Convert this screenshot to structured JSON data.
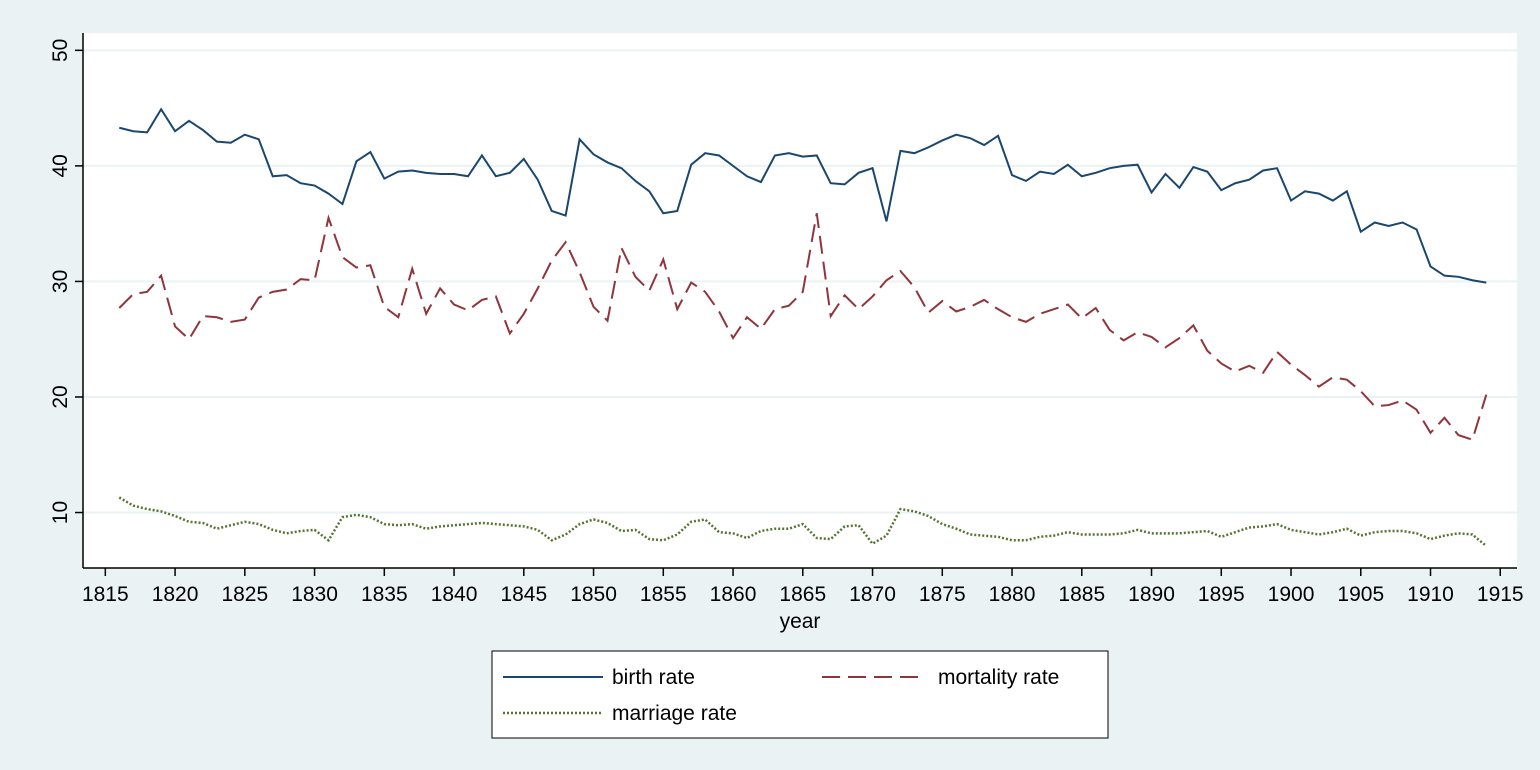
{
  "chart_data": {
    "type": "line",
    "x_label": "year",
    "x": [
      1816,
      1817,
      1818,
      1819,
      1820,
      1821,
      1822,
      1823,
      1824,
      1825,
      1826,
      1827,
      1828,
      1829,
      1830,
      1831,
      1832,
      1833,
      1834,
      1835,
      1836,
      1837,
      1838,
      1839,
      1840,
      1841,
      1842,
      1843,
      1844,
      1845,
      1846,
      1847,
      1848,
      1849,
      1850,
      1851,
      1852,
      1853,
      1854,
      1855,
      1856,
      1857,
      1858,
      1859,
      1860,
      1861,
      1862,
      1863,
      1864,
      1865,
      1866,
      1867,
      1868,
      1869,
      1870,
      1871,
      1872,
      1873,
      1874,
      1875,
      1876,
      1877,
      1878,
      1879,
      1880,
      1881,
      1882,
      1883,
      1884,
      1885,
      1886,
      1887,
      1888,
      1889,
      1890,
      1891,
      1892,
      1893,
      1894,
      1895,
      1896,
      1897,
      1898,
      1899,
      1900,
      1901,
      1902,
      1903,
      1904,
      1905,
      1906,
      1907,
      1908,
      1909,
      1910,
      1911,
      1912,
      1913,
      1914
    ],
    "series": [
      {
        "name": "birth rate",
        "color": "#1a476f",
        "dash": "solid",
        "values": [
          43.3,
          43.0,
          42.9,
          44.9,
          43.0,
          43.9,
          43.1,
          42.1,
          42.0,
          42.7,
          42.3,
          39.1,
          39.2,
          38.5,
          38.3,
          37.6,
          36.7,
          40.4,
          41.2,
          38.9,
          39.5,
          39.6,
          39.4,
          39.3,
          39.3,
          39.1,
          40.9,
          39.1,
          39.4,
          40.6,
          38.8,
          36.1,
          35.7,
          42.3,
          41.0,
          40.3,
          39.8,
          38.7,
          37.8,
          35.9,
          36.1,
          40.1,
          41.1,
          40.9,
          40.0,
          39.1,
          38.6,
          40.9,
          41.1,
          40.8,
          40.9,
          38.5,
          38.4,
          39.4,
          39.8,
          35.2,
          41.3,
          41.1,
          41.6,
          42.2,
          42.7,
          42.4,
          41.8,
          42.6,
          39.2,
          38.7,
          39.5,
          39.3,
          40.1,
          39.1,
          39.4,
          39.8,
          40.0,
          40.1,
          37.7,
          39.3,
          38.1,
          39.9,
          39.5,
          37.9,
          38.5,
          38.8,
          39.6,
          39.8,
          37.0,
          37.8,
          37.6,
          37.0,
          37.8,
          34.3,
          35.1,
          34.8,
          35.1,
          34.5,
          31.3,
          30.5,
          30.4,
          30.1,
          29.9
        ]
      },
      {
        "name": "mortality rate",
        "color": "#90353b",
        "dash": "dashed",
        "values": [
          27.7,
          28.9,
          29.1,
          30.5,
          26.1,
          25.0,
          27.0,
          26.9,
          26.5,
          26.7,
          28.6,
          29.1,
          29.3,
          30.2,
          30.1,
          35.5,
          32.1,
          31.2,
          31.4,
          27.8,
          26.9,
          31.1,
          27.2,
          29.4,
          28.0,
          27.5,
          28.4,
          28.7,
          25.5,
          27.2,
          29.4,
          31.8,
          33.4,
          30.8,
          27.8,
          26.6,
          32.9,
          30.4,
          29.2,
          31.9,
          27.6,
          29.9,
          29.1,
          27.4,
          25.1,
          26.9,
          25.9,
          27.6,
          27.9,
          29.1,
          35.9,
          27.0,
          28.8,
          27.6,
          28.7,
          30.1,
          30.9,
          29.5,
          27.3,
          28.3,
          27.4,
          27.8,
          28.4,
          27.6,
          26.9,
          26.5,
          27.2,
          27.6,
          28.0,
          26.8,
          27.7,
          25.8,
          24.9,
          25.6,
          25.2,
          24.3,
          25.1,
          26.2,
          24.0,
          22.9,
          22.2,
          22.7,
          22.1,
          23.9,
          22.8,
          21.9,
          20.9,
          21.7,
          21.5,
          20.5,
          19.2,
          19.3,
          19.7,
          18.9,
          16.9,
          18.2,
          16.7,
          16.3,
          20.2
        ]
      },
      {
        "name": "marriage rate",
        "color": "#55752f",
        "dash": "dotted",
        "values": [
          11.3,
          10.6,
          10.3,
          10.1,
          9.7,
          9.2,
          9.1,
          8.6,
          8.9,
          9.2,
          9.0,
          8.5,
          8.2,
          8.4,
          8.5,
          7.6,
          9.6,
          9.8,
          9.6,
          9.0,
          8.9,
          9.0,
          8.6,
          8.8,
          8.9,
          9.0,
          9.1,
          9.0,
          8.9,
          8.8,
          8.5,
          7.6,
          8.1,
          9.0,
          9.4,
          9.1,
          8.4,
          8.5,
          7.7,
          7.6,
          8.1,
          9.2,
          9.4,
          8.3,
          8.2,
          7.8,
          8.4,
          8.6,
          8.6,
          9.0,
          7.8,
          7.7,
          8.8,
          8.9,
          7.3,
          8.0,
          10.3,
          10.1,
          9.7,
          9.0,
          8.6,
          8.1,
          8.0,
          7.9,
          7.6,
          7.6,
          7.9,
          8.0,
          8.3,
          8.1,
          8.1,
          8.1,
          8.2,
          8.5,
          8.2,
          8.2,
          8.2,
          8.3,
          8.4,
          7.9,
          8.3,
          8.7,
          8.8,
          9.0,
          8.5,
          8.3,
          8.1,
          8.3,
          8.6,
          8.0,
          8.3,
          8.4,
          8.4,
          8.2,
          7.7,
          8.0,
          8.2,
          8.1,
          7.1
        ]
      }
    ],
    "xlim": [
      1813.4,
      1916.2
    ],
    "ylim": [
      5.2,
      51.5
    ],
    "xticks": [
      1815,
      1820,
      1825,
      1830,
      1835,
      1840,
      1845,
      1850,
      1855,
      1860,
      1865,
      1870,
      1875,
      1880,
      1885,
      1890,
      1895,
      1900,
      1905,
      1910,
      1915
    ],
    "yticks": [
      10,
      20,
      30,
      40,
      50
    ],
    "grid": true,
    "legend": "bottom"
  }
}
